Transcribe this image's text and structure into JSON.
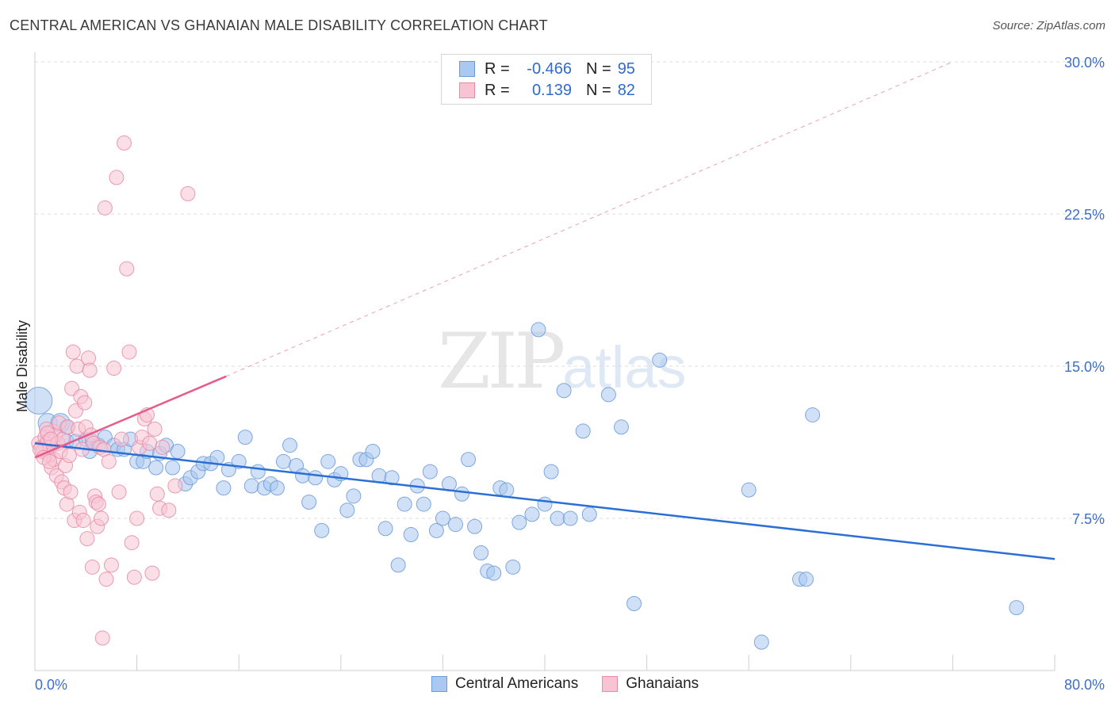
{
  "title": "CENTRAL AMERICAN VS GHANAIAN MALE DISABILITY CORRELATION CHART",
  "source": "Source: ZipAtlas.com",
  "watermark": {
    "zip": "ZIP",
    "atlas": "atlas"
  },
  "legend": {
    "rows": [
      {
        "r_label": "R =",
        "r_value": "-0.466",
        "n_label": "N =",
        "n_value": "95",
        "color": "#aac8f0",
        "border": "#6b9ad8"
      },
      {
        "r_label": "R =",
        "r_value": "0.139",
        "n_label": "N =",
        "n_value": "82",
        "color": "#f8c4d4",
        "border": "#e88aa8"
      }
    ]
  },
  "bottom_legend": [
    {
      "label": "Central Americans",
      "color": "#aac8f0",
      "border": "#6b9ad8"
    },
    {
      "label": "Ghanaians",
      "color": "#f8c4d4",
      "border": "#e88aa8"
    }
  ],
  "chart_data": {
    "type": "scatter",
    "title": "CENTRAL AMERICAN VS GHANAIAN MALE DISABILITY CORRELATION CHART",
    "xlabel": "",
    "ylabel": "Male Disability",
    "xlim": [
      0,
      80
    ],
    "ylim": [
      0,
      30
    ],
    "x_tick_labels": [
      "0.0%",
      "80.0%"
    ],
    "y_ticks": [
      7.5,
      15.0,
      22.5,
      30.0
    ],
    "y_tick_labels": [
      "7.5%",
      "15.0%",
      "22.5%",
      "30.0%"
    ],
    "grid": true,
    "legend_position": "top-center",
    "series": [
      {
        "name": "Central Americans",
        "color": "#6b9ad8",
        "fill": "#aac8f0",
        "trend": {
          "x": [
            0,
            80
          ],
          "y": [
            11.2,
            5.5
          ],
          "color": "#2b6fd6"
        },
        "points": [
          [
            0.3,
            13.3
          ],
          [
            1.0,
            12.2
          ],
          [
            2.0,
            12.2
          ],
          [
            2.5,
            11.3
          ],
          [
            3.2,
            11.3
          ],
          [
            4.0,
            11.4
          ],
          [
            4.3,
            10.8
          ],
          [
            5.0,
            11.1
          ],
          [
            5.5,
            11.5
          ],
          [
            6.2,
            11.1
          ],
          [
            6.5,
            10.9
          ],
          [
            7.0,
            10.9
          ],
          [
            7.5,
            11.4
          ],
          [
            8.0,
            10.3
          ],
          [
            8.5,
            10.3
          ],
          [
            8.8,
            10.8
          ],
          [
            9.5,
            10.0
          ],
          [
            9.8,
            10.7
          ],
          [
            10.3,
            11.1
          ],
          [
            10.8,
            10.0
          ],
          [
            11.2,
            10.8
          ],
          [
            11.8,
            9.2
          ],
          [
            12.2,
            9.5
          ],
          [
            12.8,
            9.8
          ],
          [
            13.2,
            10.2
          ],
          [
            13.8,
            10.2
          ],
          [
            14.3,
            10.5
          ],
          [
            14.8,
            9.0
          ],
          [
            15.2,
            9.9
          ],
          [
            16.0,
            10.3
          ],
          [
            16.5,
            11.5
          ],
          [
            17.0,
            9.1
          ],
          [
            17.5,
            9.8
          ],
          [
            18.0,
            9.0
          ],
          [
            18.5,
            9.2
          ],
          [
            19.0,
            9.0
          ],
          [
            19.5,
            10.3
          ],
          [
            20.0,
            11.1
          ],
          [
            20.5,
            10.1
          ],
          [
            21.0,
            9.6
          ],
          [
            21.5,
            8.3
          ],
          [
            22.0,
            9.5
          ],
          [
            22.5,
            6.9
          ],
          [
            23.0,
            10.3
          ],
          [
            23.5,
            9.4
          ],
          [
            24.0,
            9.7
          ],
          [
            24.5,
            7.9
          ],
          [
            25.0,
            8.6
          ],
          [
            25.5,
            10.4
          ],
          [
            26.0,
            10.4
          ],
          [
            26.5,
            10.8
          ],
          [
            27.0,
            9.6
          ],
          [
            27.5,
            7.0
          ],
          [
            28.0,
            9.5
          ],
          [
            28.5,
            5.2
          ],
          [
            29.0,
            8.2
          ],
          [
            29.5,
            6.7
          ],
          [
            30.0,
            9.1
          ],
          [
            30.5,
            8.2
          ],
          [
            31.0,
            9.8
          ],
          [
            31.5,
            6.9
          ],
          [
            32.0,
            7.5
          ],
          [
            32.5,
            9.2
          ],
          [
            33.0,
            7.2
          ],
          [
            33.5,
            8.7
          ],
          [
            34.0,
            10.4
          ],
          [
            34.5,
            7.1
          ],
          [
            35.0,
            5.8
          ],
          [
            35.5,
            4.9
          ],
          [
            36.0,
            4.8
          ],
          [
            36.5,
            9.0
          ],
          [
            37.0,
            8.9
          ],
          [
            37.5,
            5.1
          ],
          [
            38.0,
            7.3
          ],
          [
            39.0,
            7.7
          ],
          [
            39.5,
            16.8
          ],
          [
            40.0,
            8.2
          ],
          [
            40.5,
            9.8
          ],
          [
            41.0,
            7.5
          ],
          [
            41.5,
            13.8
          ],
          [
            42.0,
            7.5
          ],
          [
            43.0,
            11.8
          ],
          [
            43.5,
            7.7
          ],
          [
            45.0,
            13.6
          ],
          [
            46.0,
            12.0
          ],
          [
            47.0,
            3.3
          ],
          [
            49.0,
            15.3
          ],
          [
            56.0,
            8.9
          ],
          [
            57.0,
            1.4
          ],
          [
            60.0,
            4.5
          ],
          [
            60.5,
            4.5
          ],
          [
            61.0,
            12.6
          ],
          [
            77.0,
            3.1
          ],
          [
            2.5,
            12.0
          ],
          [
            4.5,
            11.3
          ]
        ]
      },
      {
        "name": "Ghanaians",
        "color": "#e88aa8",
        "fill": "#f8c4d4",
        "trend": {
          "x": [
            0,
            15
          ],
          "y": [
            10.5,
            14.5
          ],
          "color": "#e85a8a"
        },
        "trend_extension": {
          "x": [
            15,
            72
          ],
          "y": [
            14.5,
            30.0
          ]
        },
        "points": [
          [
            0.3,
            11.2
          ],
          [
            0.5,
            11.0
          ],
          [
            0.6,
            10.8
          ],
          [
            0.8,
            11.5
          ],
          [
            1.0,
            11.3
          ],
          [
            1.1,
            10.6
          ],
          [
            1.2,
            11.0
          ],
          [
            1.3,
            10.0
          ],
          [
            1.4,
            11.8
          ],
          [
            1.5,
            10.4
          ],
          [
            1.6,
            11.6
          ],
          [
            1.7,
            9.6
          ],
          [
            1.8,
            11.2
          ],
          [
            1.9,
            12.2
          ],
          [
            2.0,
            10.8
          ],
          [
            2.1,
            9.3
          ],
          [
            2.2,
            11.4
          ],
          [
            2.3,
            9.0
          ],
          [
            2.4,
            10.1
          ],
          [
            2.5,
            8.2
          ],
          [
            2.6,
            12.0
          ],
          [
            2.7,
            10.6
          ],
          [
            2.8,
            8.8
          ],
          [
            2.9,
            13.9
          ],
          [
            3.0,
            15.7
          ],
          [
            3.1,
            7.4
          ],
          [
            3.2,
            12.8
          ],
          [
            3.3,
            15.0
          ],
          [
            3.4,
            11.9
          ],
          [
            3.5,
            7.8
          ],
          [
            3.6,
            13.5
          ],
          [
            3.7,
            10.9
          ],
          [
            3.8,
            7.4
          ],
          [
            3.9,
            13.2
          ],
          [
            4.0,
            12.0
          ],
          [
            4.1,
            6.5
          ],
          [
            4.2,
            15.4
          ],
          [
            4.3,
            14.8
          ],
          [
            4.4,
            11.6
          ],
          [
            4.5,
            5.1
          ],
          [
            4.6,
            11.2
          ],
          [
            4.7,
            8.6
          ],
          [
            4.8,
            8.3
          ],
          [
            4.9,
            7.1
          ],
          [
            5.0,
            8.2
          ],
          [
            5.1,
            11.0
          ],
          [
            5.2,
            7.5
          ],
          [
            5.3,
            1.6
          ],
          [
            5.4,
            10.9
          ],
          [
            5.5,
            22.8
          ],
          [
            5.6,
            4.5
          ],
          [
            5.8,
            10.3
          ],
          [
            6.0,
            5.2
          ],
          [
            6.2,
            14.9
          ],
          [
            6.4,
            24.3
          ],
          [
            6.6,
            8.8
          ],
          [
            6.8,
            11.4
          ],
          [
            7.0,
            26.0
          ],
          [
            7.2,
            19.8
          ],
          [
            7.4,
            15.7
          ],
          [
            7.6,
            6.3
          ],
          [
            7.8,
            4.6
          ],
          [
            8.0,
            7.5
          ],
          [
            8.2,
            11.0
          ],
          [
            8.4,
            11.5
          ],
          [
            8.6,
            12.4
          ],
          [
            8.8,
            12.6
          ],
          [
            9.0,
            11.2
          ],
          [
            9.2,
            4.8
          ],
          [
            9.4,
            11.9
          ],
          [
            9.6,
            8.7
          ],
          [
            9.8,
            8.0
          ],
          [
            10.0,
            11.0
          ],
          [
            10.5,
            7.9
          ],
          [
            11.0,
            9.1
          ],
          [
            12.0,
            23.5
          ],
          [
            0.4,
            10.9
          ],
          [
            0.7,
            10.5
          ],
          [
            0.9,
            11.9
          ],
          [
            1.0,
            11.7
          ],
          [
            1.15,
            10.3
          ],
          [
            1.25,
            11.4
          ]
        ]
      }
    ]
  }
}
